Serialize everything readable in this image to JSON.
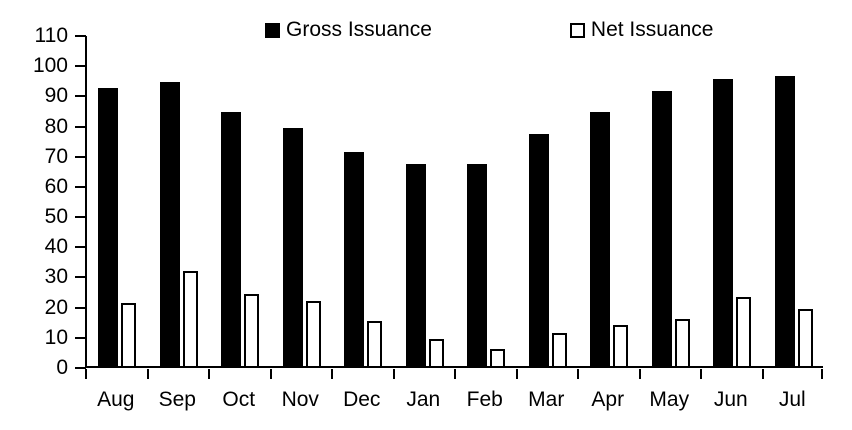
{
  "chart_data": {
    "type": "bar",
    "title": "",
    "xlabel": "",
    "ylabel": "",
    "categories": [
      "Aug",
      "Sep",
      "Oct",
      "Nov",
      "Dec",
      "Jan",
      "Feb",
      "Mar",
      "Apr",
      "May",
      "Jun",
      "Jul"
    ],
    "series": [
      {
        "name": "Gross Issuance",
        "fill": "#000000",
        "border": "#000000",
        "values": [
          92,
          94,
          84,
          79,
          71,
          67,
          67,
          77,
          84,
          91,
          95,
          96
        ]
      },
      {
        "name": "Net Issuance",
        "fill": "#ffffff",
        "border": "#000000",
        "values": [
          21,
          31.5,
          24,
          21.5,
          15,
          9,
          5.5,
          11,
          13.5,
          15.5,
          23,
          19
        ]
      }
    ],
    "ylim": [
      0,
      110
    ],
    "ytick_step": 10,
    "grid": false,
    "legend_position": "top",
    "axis_color": "#000000",
    "background_color": "#ffffff"
  }
}
